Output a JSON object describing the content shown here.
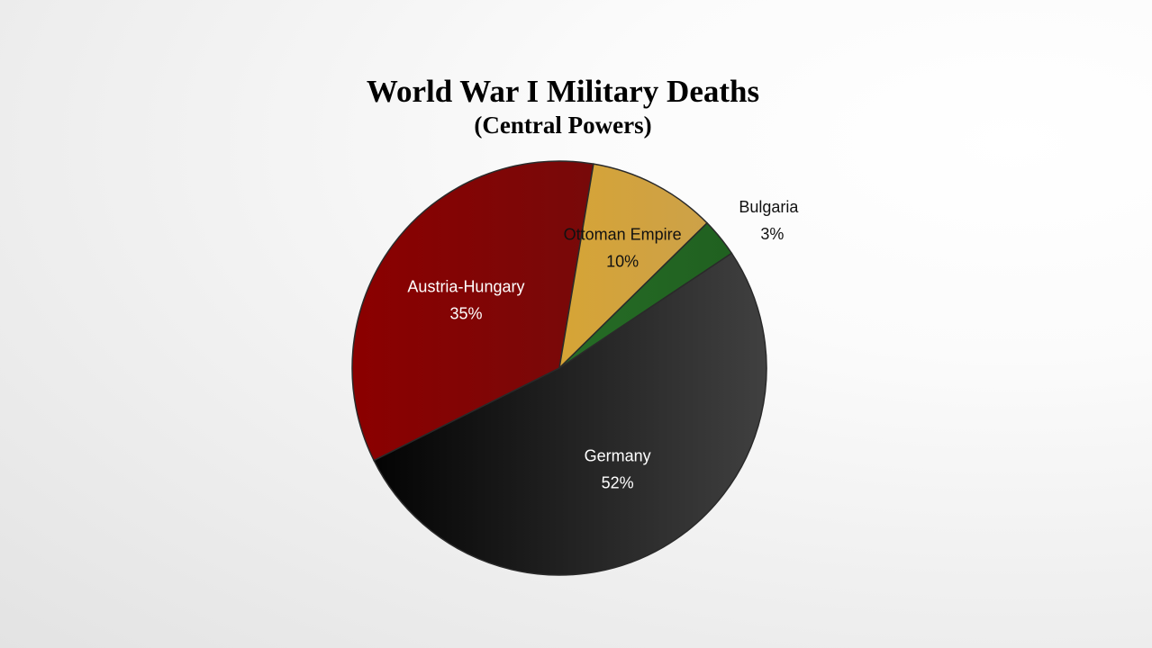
{
  "chart_data": {
    "type": "pie",
    "title": "World War I Military Deaths",
    "subtitle": "(Central Powers)",
    "slices": [
      {
        "name": "Austria-Hungary",
        "value": 35,
        "label": "35%",
        "color": "#8b0000",
        "color_dark": "#6a1010",
        "text_color": "#ffffff"
      },
      {
        "name": "Ottoman Empire",
        "value": 10,
        "label": "10%",
        "color": "#e3a81b",
        "color_dark": "#c9a050",
        "text_color": "#111111"
      },
      {
        "name": "Bulgaria",
        "value": 3,
        "label": "3%",
        "color": "#2c7a2c",
        "color_dark": "#1f5e1f",
        "text_color": "#111111",
        "label_outside": true
      },
      {
        "name": "Germany",
        "value": 52,
        "label": "52%",
        "color": "#000000",
        "color_dark": "#404040",
        "text_color": "#ffffff"
      }
    ],
    "legend": "none"
  }
}
